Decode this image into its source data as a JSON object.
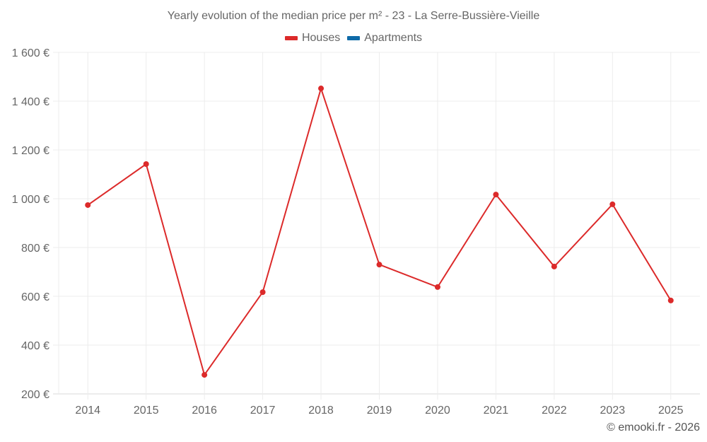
{
  "title": "Yearly evolution of the median price per m² - 23 - La Serre-Bussière-Vieille",
  "legend": [
    {
      "label": "Houses",
      "color": "#dc2a2a"
    },
    {
      "label": "Apartments",
      "color": "#0e6aa8"
    }
  ],
  "credit": "© emooki.fr - 2026",
  "chart_data": {
    "type": "line",
    "title": "Yearly evolution of the median price per m² - 23 - La Serre-Bussière-Vieille",
    "xlabel": "",
    "ylabel": "",
    "categories": [
      "2014",
      "2015",
      "2016",
      "2017",
      "2018",
      "2019",
      "2020",
      "2021",
      "2022",
      "2023",
      "2025"
    ],
    "series": [
      {
        "name": "Houses",
        "color": "#dc2a2a",
        "values": [
          974,
          1142,
          278,
          617,
          1452,
          730,
          638,
          1017,
          722,
          977,
          583
        ]
      },
      {
        "name": "Apartments",
        "color": "#0e6aa8",
        "values": []
      }
    ],
    "yticks": [
      200,
      400,
      600,
      800,
      1000,
      1200,
      1400,
      1600
    ],
    "ytick_labels": [
      "200 €",
      "400 €",
      "600 €",
      "800 €",
      "1 000 €",
      "1 200 €",
      "1 400 €",
      "1 600 €"
    ],
    "ylim": [
      200,
      1600
    ],
    "grid": true,
    "legend_position": "top"
  }
}
